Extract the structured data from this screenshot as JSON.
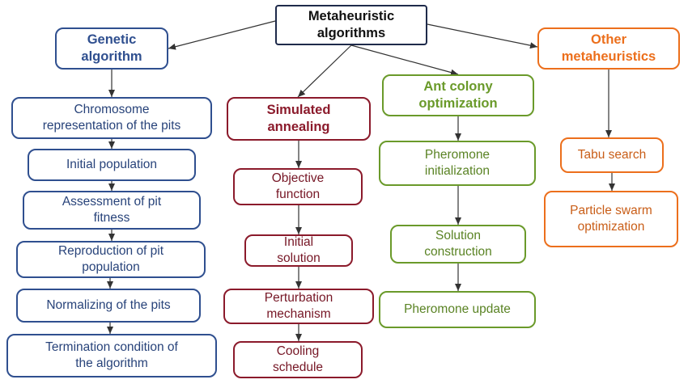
{
  "root": {
    "label": "Metaheuristic\nalgorithms",
    "color": "#1e2a4a"
  },
  "branches": [
    {
      "key": "ga",
      "label": "Genetic\nalgorithm",
      "color": "#2f4f8f",
      "items": [
        "Chromosome\nrepresentation of the pits",
        "Initial population",
        "Assessment of pit\nfitness",
        "Reproduction of pit\npopulation",
        "Normalizing of the pits",
        "Termination condition of\nthe algorithm"
      ]
    },
    {
      "key": "sa",
      "label": "Simulated\nannealing",
      "color": "#8b1a2b",
      "items": [
        "Objective\nfunction",
        "Initial\nsolution",
        "Perturbation\nmechanism",
        "Cooling\nschedule"
      ]
    },
    {
      "key": "aco",
      "label": "Ant colony\noptimization",
      "color": "#6a9a2a",
      "items": [
        "Pheromone\ninitialization",
        "Solution\nconstruction",
        "Pheromone update"
      ]
    },
    {
      "key": "other",
      "label": "Other\nmetaheuristics",
      "color": "#ec6f1c",
      "items": [
        "Tabu search",
        "Particle swarm\noptimization"
      ]
    }
  ]
}
